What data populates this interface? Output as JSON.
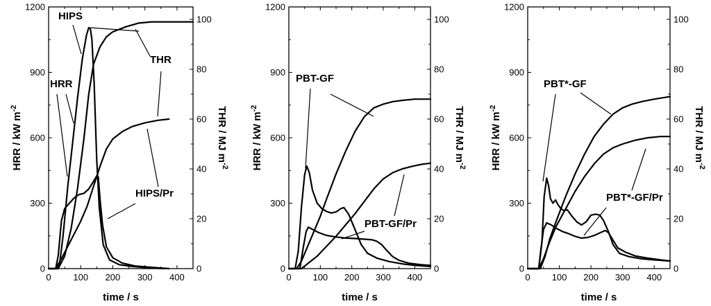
{
  "chart_data": [
    {
      "type": "line",
      "panel": "left",
      "xlabel": "time  /  s",
      "ylabel_left": "HRR  / kW m",
      "ylabel_left_sup": "-2",
      "ylabel_right": "THR  /  MJ m",
      "ylabel_right_sup": "-2",
      "xlim": [
        0,
        450
      ],
      "ylim_left": [
        0,
        1200
      ],
      "ylim_right": [
        0,
        105
      ],
      "xticks": [
        "0",
        "100",
        "200",
        "300",
        "400"
      ],
      "yticks_left": [
        "0",
        "300",
        "600",
        "900",
        "1200"
      ],
      "yticks_right": [
        "0",
        "20",
        "40",
        "60",
        "80",
        "100"
      ],
      "series": [
        {
          "name": "HIPS HRR",
          "axis": "left",
          "points": [
            [
              0,
              0
            ],
            [
              28,
              0
            ],
            [
              35,
              30
            ],
            [
              45,
              150
            ],
            [
              60,
              380
            ],
            [
              75,
              580
            ],
            [
              90,
              780
            ],
            [
              105,
              960
            ],
            [
              118,
              1070
            ],
            [
              125,
              1105
            ],
            [
              130,
              1100
            ],
            [
              135,
              1050
            ],
            [
              142,
              850
            ],
            [
              150,
              500
            ],
            [
              158,
              280
            ],
            [
              170,
              110
            ],
            [
              190,
              40
            ],
            [
              220,
              18
            ],
            [
              260,
              10
            ],
            [
              300,
              5
            ],
            [
              360,
              0
            ]
          ]
        },
        {
          "name": "HIPS THR",
          "axis": "left_thr",
          "points": [
            [
              0,
              0
            ],
            [
              30,
              0
            ],
            [
              50,
              5
            ],
            [
              70,
              16
            ],
            [
              90,
              32
            ],
            [
              110,
              52
            ],
            [
              125,
              70
            ],
            [
              140,
              82
            ],
            [
              160,
              89
            ],
            [
              180,
              93
            ],
            [
              200,
              95
            ],
            [
              240,
              97
            ],
            [
              280,
              98.5
            ],
            [
              320,
              99
            ],
            [
              450,
              99
            ]
          ]
        },
        {
          "name": "HIPS/Pr HRR",
          "axis": "left",
          "points": [
            [
              0,
              0
            ],
            [
              22,
              0
            ],
            [
              30,
              60
            ],
            [
              40,
              220
            ],
            [
              50,
              275
            ],
            [
              65,
              300
            ],
            [
              80,
              325
            ],
            [
              95,
              340
            ],
            [
              110,
              345
            ],
            [
              125,
              365
            ],
            [
              140,
              400
            ],
            [
              150,
              425
            ],
            [
              155,
              420
            ],
            [
              160,
              320
            ],
            [
              168,
              200
            ],
            [
              180,
              100
            ],
            [
              200,
              50
            ],
            [
              230,
              25
            ],
            [
              270,
              12
            ],
            [
              320,
              6
            ],
            [
              375,
              0
            ]
          ]
        },
        {
          "name": "HIPS/Pr THR",
          "axis": "left_thr",
          "points": [
            [
              0,
              0
            ],
            [
              22,
              0
            ],
            [
              40,
              4
            ],
            [
              60,
              9
            ],
            [
              80,
              14
            ],
            [
              100,
              19
            ],
            [
              120,
              25
            ],
            [
              140,
              33
            ],
            [
              160,
              41
            ],
            [
              180,
              48
            ],
            [
              200,
              52
            ],
            [
              230,
              55
            ],
            [
              260,
              57
            ],
            [
              300,
              58.5
            ],
            [
              340,
              59.5
            ],
            [
              375,
              60
            ]
          ]
        }
      ],
      "annotations": [
        "HIPS",
        "HRR",
        "THR",
        "HIPS/Pr"
      ]
    },
    {
      "type": "line",
      "panel": "middle",
      "xlabel": "time  /  s",
      "ylabel_left": "HRR  / kW m",
      "ylabel_left_sup": "-2",
      "ylabel_right": "THR  /  MJ m",
      "ylabel_right_sup": "-2",
      "xlim": [
        0,
        450
      ],
      "ylim_left": [
        0,
        1200
      ],
      "ylim_right": [
        0,
        105
      ],
      "xticks": [
        "0",
        "100",
        "200",
        "300",
        "400"
      ],
      "yticks_left": [
        "0",
        "300",
        "600",
        "900",
        "1200"
      ],
      "yticks_right": [
        "0",
        "20",
        "40",
        "60",
        "80",
        "100"
      ],
      "series": [
        {
          "name": "PBT-GF HRR",
          "axis": "left",
          "points": [
            [
              0,
              0
            ],
            [
              20,
              0
            ],
            [
              30,
              80
            ],
            [
              40,
              280
            ],
            [
              50,
              430
            ],
            [
              57,
              470
            ],
            [
              65,
              440
            ],
            [
              75,
              360
            ],
            [
              90,
              300
            ],
            [
              105,
              275
            ],
            [
              120,
              262
            ],
            [
              135,
              255
            ],
            [
              150,
              260
            ],
            [
              165,
              275
            ],
            [
              175,
              280
            ],
            [
              190,
              250
            ],
            [
              210,
              180
            ],
            [
              230,
              110
            ],
            [
              250,
              70
            ],
            [
              280,
              48
            ],
            [
              320,
              32
            ],
            [
              360,
              22
            ],
            [
              400,
              15
            ],
            [
              450,
              10
            ]
          ]
        },
        {
          "name": "PBT-GF THR",
          "axis": "left_thr",
          "points": [
            [
              0,
              0
            ],
            [
              25,
              0
            ],
            [
              40,
              3
            ],
            [
              60,
              9
            ],
            [
              80,
              15
            ],
            [
              100,
              21
            ],
            [
              120,
              28
            ],
            [
              150,
              38
            ],
            [
              180,
              47
            ],
            [
              210,
              55
            ],
            [
              240,
              61
            ],
            [
              270,
              64.5
            ],
            [
              300,
              66
            ],
            [
              330,
              67
            ],
            [
              360,
              67.5
            ],
            [
              400,
              68
            ],
            [
              450,
              68
            ]
          ]
        },
        {
          "name": "PBT-GF/Pr HRR",
          "axis": "left",
          "points": [
            [
              0,
              0
            ],
            [
              35,
              0
            ],
            [
              45,
              90
            ],
            [
              55,
              170
            ],
            [
              62,
              190
            ],
            [
              75,
              180
            ],
            [
              95,
              165
            ],
            [
              120,
              152
            ],
            [
              150,
              145
            ],
            [
              180,
              140
            ],
            [
              210,
              138
            ],
            [
              240,
              135
            ],
            [
              265,
              132
            ],
            [
              280,
              125
            ],
            [
              295,
              110
            ],
            [
              310,
              85
            ],
            [
              330,
              55
            ],
            [
              350,
              38
            ],
            [
              380,
              25
            ],
            [
              420,
              18
            ],
            [
              450,
              15
            ]
          ]
        },
        {
          "name": "PBT-GF/Pr THR",
          "axis": "left_thr",
          "points": [
            [
              0,
              0
            ],
            [
              40,
              0
            ],
            [
              60,
              2
            ],
            [
              90,
              5
            ],
            [
              120,
              9
            ],
            [
              150,
              13
            ],
            [
              180,
              17.5
            ],
            [
              210,
              22
            ],
            [
              240,
              27
            ],
            [
              270,
              32
            ],
            [
              300,
              36
            ],
            [
              330,
              38.5
            ],
            [
              360,
              40
            ],
            [
              390,
              41
            ],
            [
              420,
              41.8
            ],
            [
              450,
              42.3
            ]
          ]
        }
      ],
      "annotations": [
        "PBT-GF",
        "PBT-GF/Pr"
      ]
    },
    {
      "type": "line",
      "panel": "right",
      "xlabel": "time  /  s",
      "ylabel_left": "HRR  / kW m",
      "ylabel_left_sup": "-2",
      "ylabel_right": "THR  /  MJ m",
      "ylabel_right_sup": "-2",
      "xlim": [
        0,
        450
      ],
      "ylim_left": [
        0,
        1200
      ],
      "ylim_right": [
        0,
        105
      ],
      "xticks": [
        "0",
        "100",
        "200",
        "300",
        "400"
      ],
      "yticks_left": [
        "0",
        "300",
        "600",
        "900",
        "1200"
      ],
      "yticks_right": [
        "0",
        "20",
        "40",
        "60",
        "80",
        "100"
      ],
      "series": [
        {
          "name": "PBT*-GF HRR",
          "axis": "left",
          "points": [
            [
              0,
              0
            ],
            [
              35,
              0
            ],
            [
              45,
              120
            ],
            [
              52,
              330
            ],
            [
              60,
              415
            ],
            [
              66,
              380
            ],
            [
              72,
              320
            ],
            [
              80,
              300
            ],
            [
              88,
              315
            ],
            [
              95,
              295
            ],
            [
              105,
              275
            ],
            [
              115,
              265
            ],
            [
              125,
              270
            ],
            [
              140,
              240
            ],
            [
              155,
              215
            ],
            [
              170,
              200
            ],
            [
              185,
              215
            ],
            [
              200,
              245
            ],
            [
              215,
              250
            ],
            [
              228,
              245
            ],
            [
              240,
              220
            ],
            [
              255,
              170
            ],
            [
              270,
              110
            ],
            [
              290,
              70
            ],
            [
              320,
              55
            ],
            [
              360,
              45
            ],
            [
              400,
              40
            ],
            [
              450,
              35
            ]
          ]
        },
        {
          "name": "PBT*-GF THR",
          "axis": "left_thr",
          "points": [
            [
              0,
              0
            ],
            [
              40,
              0
            ],
            [
              55,
              5
            ],
            [
              70,
              12
            ],
            [
              90,
              19
            ],
            [
              120,
              29
            ],
            [
              150,
              38
            ],
            [
              180,
              46
            ],
            [
              210,
              53
            ],
            [
              240,
              58
            ],
            [
              270,
              62
            ],
            [
              300,
              64.5
            ],
            [
              330,
              66
            ],
            [
              360,
              67
            ],
            [
              400,
              68
            ],
            [
              450,
              69
            ]
          ]
        },
        {
          "name": "PBT*-GF/Pr HRR",
          "axis": "left",
          "points": [
            [
              0,
              0
            ],
            [
              35,
              0
            ],
            [
              42,
              90
            ],
            [
              50,
              180
            ],
            [
              60,
              210
            ],
            [
              75,
              200
            ],
            [
              90,
              185
            ],
            [
              110,
              170
            ],
            [
              130,
              160
            ],
            [
              150,
              148
            ],
            [
              170,
              140
            ],
            [
              190,
              143
            ],
            [
              210,
              152
            ],
            [
              230,
              165
            ],
            [
              245,
              175
            ],
            [
              255,
              165
            ],
            [
              270,
              130
            ],
            [
              285,
              95
            ],
            [
              310,
              75
            ],
            [
              340,
              58
            ],
            [
              380,
              48
            ],
            [
              420,
              40
            ],
            [
              450,
              35
            ]
          ]
        },
        {
          "name": "PBT*-GF/Pr THR",
          "axis": "left_thr",
          "points": [
            [
              0,
              0
            ],
            [
              35,
              0
            ],
            [
              50,
              4
            ],
            [
              70,
              11
            ],
            [
              90,
              17
            ],
            [
              120,
              24
            ],
            [
              150,
              31
            ],
            [
              180,
              37
            ],
            [
              210,
              42
            ],
            [
              240,
              46
            ],
            [
              270,
              48.5
            ],
            [
              300,
              50
            ],
            [
              340,
              51.5
            ],
            [
              380,
              52.5
            ],
            [
              420,
              53
            ],
            [
              450,
              53
            ]
          ]
        }
      ],
      "annotations": [
        "PBT*-GF",
        "PBT*-GF/Pr"
      ]
    }
  ]
}
